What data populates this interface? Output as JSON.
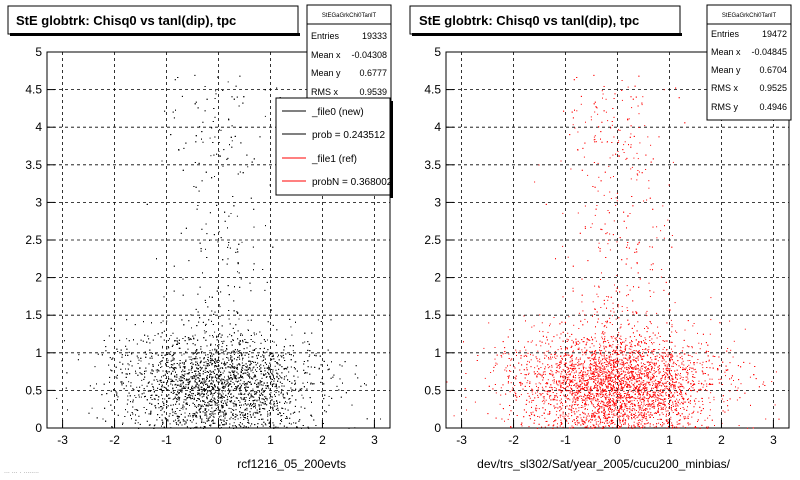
{
  "chart_data": [
    {
      "type": "scatter",
      "title": "StE globtrk: Chisq0 vs tanl(dip), tpc",
      "xlabel": "rcf1216_05_200evts",
      "ylabel": "",
      "xlim": [
        -3.3,
        3.3
      ],
      "ylim": [
        0,
        5
      ],
      "xticks": [
        "-3",
        "-2",
        "-1",
        "0",
        "1",
        "2",
        "3"
      ],
      "yticks": [
        "0",
        "0.5",
        "1",
        "1.5",
        "2",
        "2.5",
        "3",
        "3.5",
        "4",
        "4.5",
        "5"
      ],
      "grid": true,
      "color": "#000000",
      "stats": {
        "name": "StEGaGrkChi0TanlT",
        "rows": [
          {
            "label": "Entries",
            "value": "19333"
          },
          {
            "label": "Mean x",
            "value": "-0.04308"
          },
          {
            "label": "Mean y",
            "value": "0.6777"
          },
          {
            "label": "RMS x",
            "value": "0.9539"
          }
        ]
      },
      "legend": {
        "placement": "top-right",
        "entries": [
          {
            "label": "_file0 (new)",
            "color": "#000000"
          },
          {
            "label": "prob = 0.243512",
            "color": "#000000"
          },
          {
            "label": "_file1 (ref)",
            "color": "#ff0000"
          },
          {
            "label": "probN = 0.368002",
            "color": "#ff0000"
          }
        ]
      },
      "distribution": {
        "entries": 19333,
        "mean_x": -0.04308,
        "mean_y": 0.6777,
        "rms_x": 0.9539
      }
    },
    {
      "type": "scatter",
      "title": "StE globtrk: Chisq0 vs tanl(dip), tpc",
      "xlabel": "dev/trs_sl302/Sat/year_2005/cucu200_minbias/",
      "ylabel": "",
      "xlim": [
        -3.3,
        3.3
      ],
      "ylim": [
        0,
        5
      ],
      "xticks": [
        "-3",
        "-2",
        "-1",
        "0",
        "1",
        "2",
        "3"
      ],
      "yticks": [
        "0",
        "0.5",
        "1",
        "1.5",
        "2",
        "2.5",
        "3",
        "3.5",
        "4",
        "4.5",
        "5"
      ],
      "grid": true,
      "color": "#ff0000",
      "stats": {
        "name": "StEGaGrkChi0TanlT",
        "rows": [
          {
            "label": "Entries",
            "value": "19472"
          },
          {
            "label": "Mean x",
            "value": "-0.04845"
          },
          {
            "label": "Mean y",
            "value": "0.6704"
          },
          {
            "label": "RMS x",
            "value": "0.9525"
          },
          {
            "label": "RMS y",
            "value": "0.4946"
          }
        ]
      },
      "distribution": {
        "entries": 19472,
        "mean_x": -0.04845,
        "mean_y": 0.6704,
        "rms_x": 0.9525,
        "rms_y": 0.4946
      }
    }
  ],
  "footer_text": "... ... . ........"
}
